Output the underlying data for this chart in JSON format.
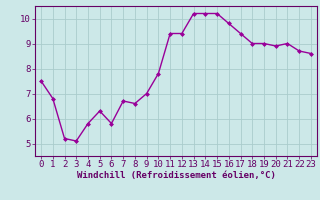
{
  "x": [
    0,
    1,
    2,
    3,
    4,
    5,
    6,
    7,
    8,
    9,
    10,
    11,
    12,
    13,
    14,
    15,
    16,
    17,
    18,
    19,
    20,
    21,
    22,
    23
  ],
  "y": [
    7.5,
    6.8,
    5.2,
    5.1,
    5.8,
    6.3,
    5.8,
    6.7,
    6.6,
    7.0,
    7.8,
    9.4,
    9.4,
    10.2,
    10.2,
    10.2,
    9.8,
    9.4,
    9.0,
    9.0,
    8.9,
    9.0,
    8.7,
    8.6
  ],
  "xlabel": "Windchill (Refroidissement éolien,°C)",
  "ylim": [
    4.5,
    10.5
  ],
  "xlim": [
    -0.5,
    23.5
  ],
  "yticks": [
    5,
    6,
    7,
    8,
    9,
    10
  ],
  "xticks": [
    0,
    1,
    2,
    3,
    4,
    5,
    6,
    7,
    8,
    9,
    10,
    11,
    12,
    13,
    14,
    15,
    16,
    17,
    18,
    19,
    20,
    21,
    22,
    23
  ],
  "line_color": "#990099",
  "marker": "D",
  "marker_size": 2.0,
  "bg_color": "#cce8e8",
  "grid_color": "#aacccc",
  "border_color": "#660066",
  "label_color": "#660066",
  "xlabel_fontsize": 6.5,
  "tick_fontsize": 6.5,
  "line_width": 1.0
}
